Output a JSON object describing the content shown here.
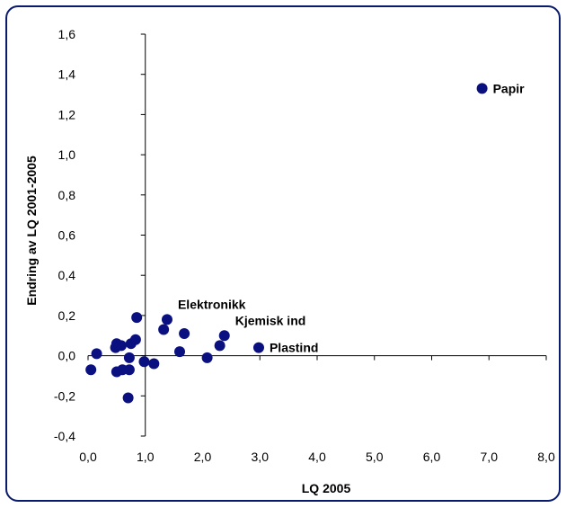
{
  "chart_data": {
    "type": "scatter",
    "xlabel": "LQ 2005",
    "ylabel": "Endring av LQ 2001-2005",
    "xlim": [
      0.0,
      8.0
    ],
    "ylim": [
      -0.4,
      1.6
    ],
    "x_ticks": [
      "0,0",
      "1,0",
      "2,0",
      "3,0",
      "4,0",
      "5,0",
      "6,0",
      "7,0",
      "8,0"
    ],
    "y_ticks": [
      "1,6",
      "1,4",
      "1,2",
      "1,0",
      "0,8",
      "0,6",
      "0,4",
      "0,2",
      "0,0",
      "-0,2",
      "-0,4"
    ],
    "y_axis_crosses_x": 1.0,
    "x_axis_crosses_y": 0.0,
    "marker_color": "#0a1080",
    "frame_color": "#0a1a6e",
    "points": [
      {
        "x": 0.05,
        "y": -0.07
      },
      {
        "x": 0.15,
        "y": 0.01
      },
      {
        "x": 0.48,
        "y": 0.04
      },
      {
        "x": 0.5,
        "y": 0.06
      },
      {
        "x": 0.58,
        "y": 0.05
      },
      {
        "x": 0.5,
        "y": -0.08
      },
      {
        "x": 0.6,
        "y": -0.07
      },
      {
        "x": 0.72,
        "y": -0.01
      },
      {
        "x": 0.72,
        "y": -0.07
      },
      {
        "x": 0.75,
        "y": 0.06
      },
      {
        "x": 0.83,
        "y": 0.08
      },
      {
        "x": 0.85,
        "y": 0.19
      },
      {
        "x": 0.7,
        "y": -0.21
      },
      {
        "x": 0.98,
        "y": -0.03
      },
      {
        "x": 1.15,
        "y": -0.04
      },
      {
        "x": 1.32,
        "y": 0.13
      },
      {
        "x": 1.38,
        "y": 0.18,
        "label": "Elektronikk"
      },
      {
        "x": 1.6,
        "y": 0.02
      },
      {
        "x": 1.68,
        "y": 0.11
      },
      {
        "x": 2.08,
        "y": -0.01
      },
      {
        "x": 2.3,
        "y": 0.05
      },
      {
        "x": 2.38,
        "y": 0.1,
        "label": "Kjemisk ind"
      },
      {
        "x": 2.98,
        "y": 0.04,
        "label": "Plastind"
      },
      {
        "x": 6.88,
        "y": 1.33,
        "label": "Papir"
      }
    ]
  }
}
